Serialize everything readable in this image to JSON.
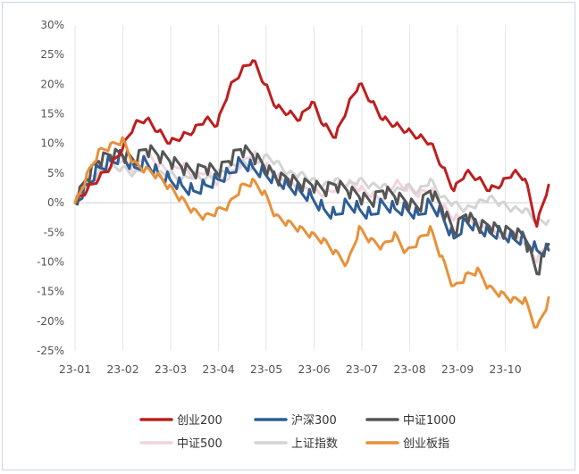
{
  "chart_data": {
    "type": "line",
    "title": "",
    "xlabel": "",
    "ylabel": "",
    "ylim": [
      -25,
      30
    ],
    "y_ticks": [
      30,
      25,
      20,
      15,
      10,
      5,
      0,
      -5,
      -10,
      -15,
      -20,
      -25
    ],
    "y_tick_labels": [
      "30%",
      "25%",
      "20%",
      "15%",
      "10%",
      "5%",
      "0%",
      "-5%",
      "-10%",
      "-15%",
      "-20%",
      "-25%"
    ],
    "x_ticks": [
      "23-01",
      "23-02",
      "23-03",
      "23-04",
      "23-05",
      "23-06",
      "23-07",
      "23-08",
      "23-09",
      "23-10"
    ],
    "x_range": [
      0,
      200
    ],
    "grid": "vertical",
    "legend_position": "bottom",
    "series": [
      {
        "name": "中证500",
        "color": "#f2d4dc",
        "x": [
          0,
          5,
          10,
          15,
          20,
          25,
          30,
          35,
          40,
          45,
          50,
          55,
          60,
          65,
          70,
          75,
          80,
          85,
          90,
          95,
          100,
          105,
          110,
          115,
          120,
          125,
          130,
          135,
          140,
          145,
          150,
          155,
          160,
          165,
          170,
          175,
          180,
          185,
          190,
          195,
          200
        ],
        "values": [
          0,
          3,
          5,
          6,
          7,
          5,
          8,
          6,
          5,
          6,
          4,
          5,
          3,
          4,
          6,
          8,
          6,
          4,
          3,
          2,
          2,
          1,
          2,
          3,
          2,
          1,
          0,
          3,
          2,
          1,
          2,
          -1,
          -3,
          -3,
          -4,
          -5,
          -6,
          -6,
          -7,
          -10,
          -7
        ]
      },
      {
        "name": "上证指数",
        "color": "#d4d4d4",
        "x": [
          0,
          5,
          10,
          15,
          20,
          25,
          30,
          35,
          40,
          45,
          50,
          55,
          60,
          65,
          70,
          75,
          80,
          85,
          90,
          95,
          100,
          105,
          110,
          115,
          120,
          125,
          130,
          135,
          140,
          145,
          150,
          155,
          160,
          165,
          170,
          175,
          180,
          185,
          190,
          195,
          200
        ],
        "values": [
          0,
          3,
          5,
          6,
          6,
          5,
          6,
          5,
          5,
          4,
          5,
          4,
          5,
          6,
          7,
          6,
          8,
          7,
          5,
          5,
          4,
          3,
          4,
          3,
          4,
          3,
          3,
          2,
          3,
          2,
          4,
          1,
          0,
          -1,
          0,
          1,
          0,
          -1,
          -1,
          -3,
          -3
        ]
      },
      {
        "name": "沪深300",
        "color": "#2e5e94",
        "x": [
          0,
          5,
          10,
          15,
          20,
          25,
          30,
          35,
          40,
          45,
          50,
          55,
          60,
          65,
          70,
          75,
          80,
          85,
          90,
          95,
          100,
          105,
          110,
          115,
          120,
          125,
          130,
          135,
          140,
          145,
          150,
          155,
          160,
          165,
          170,
          175,
          180,
          185,
          190,
          195,
          200
        ],
        "values": [
          0,
          3,
          6,
          7,
          8,
          6,
          7,
          5,
          4,
          3,
          2,
          3,
          4,
          5,
          7,
          6,
          5,
          4,
          3,
          2,
          1,
          -1,
          -2,
          0,
          -1,
          -2,
          0,
          -1,
          -1,
          -2,
          0,
          -2,
          -6,
          -3,
          -4,
          -5,
          -5,
          -6,
          -6,
          -8,
          -8
        ]
      },
      {
        "name": "中证1000",
        "color": "#555555",
        "x": [
          0,
          5,
          10,
          15,
          20,
          25,
          30,
          35,
          40,
          45,
          50,
          55,
          60,
          65,
          70,
          75,
          80,
          85,
          90,
          95,
          100,
          105,
          110,
          115,
          120,
          125,
          130,
          135,
          140,
          145,
          150,
          155,
          160,
          165,
          170,
          175,
          180,
          185,
          190,
          195,
          200
        ],
        "values": [
          0,
          4,
          7,
          8,
          8,
          7,
          9,
          8,
          7,
          6,
          5,
          6,
          5,
          7,
          9,
          8,
          6,
          4,
          4,
          3,
          3,
          2,
          3,
          2,
          1,
          0,
          2,
          1,
          0,
          -1,
          2,
          -1,
          -5,
          -2,
          -4,
          -4,
          -5,
          -5,
          -6,
          -12,
          -7
        ]
      },
      {
        "name": "创业200",
        "color": "#bd1f1f",
        "x": [
          0,
          5,
          10,
          15,
          20,
          25,
          30,
          35,
          40,
          45,
          50,
          55,
          60,
          65,
          70,
          75,
          80,
          85,
          90,
          95,
          100,
          105,
          110,
          115,
          120,
          125,
          130,
          135,
          140,
          145,
          150,
          155,
          160,
          165,
          170,
          175,
          180,
          185,
          190,
          195,
          200
        ],
        "values": [
          0,
          2,
          4,
          6,
          9,
          13,
          14,
          12,
          10,
          11,
          12,
          14,
          13,
          19,
          22,
          24,
          20,
          16,
          15,
          14,
          17,
          13,
          11,
          16,
          20,
          17,
          14,
          13,
          12,
          11,
          10,
          6,
          2,
          5,
          4,
          2,
          3,
          5,
          4,
          -4,
          3
        ]
      },
      {
        "name": "创业板指",
        "color": "#e8913a",
        "x": [
          0,
          5,
          10,
          15,
          20,
          25,
          30,
          35,
          40,
          45,
          50,
          55,
          60,
          65,
          70,
          75,
          80,
          85,
          90,
          95,
          100,
          105,
          110,
          115,
          120,
          125,
          130,
          135,
          140,
          145,
          150,
          155,
          160,
          165,
          170,
          175,
          180,
          185,
          190,
          195,
          200
        ],
        "values": [
          0,
          5,
          9,
          10,
          11,
          7,
          6,
          5,
          3,
          1,
          -1,
          -2,
          -1,
          0,
          3,
          4,
          2,
          -2,
          -3,
          -4,
          -5,
          -6,
          -8,
          -10,
          -4,
          -6,
          -7,
          -5,
          -8,
          -6,
          -4,
          -9,
          -14,
          -12,
          -11,
          -14,
          -15,
          -16,
          -16,
          -21,
          -16
        ]
      }
    ],
    "legend": [
      {
        "name": "创业200",
        "color": "#bd1f1f"
      },
      {
        "name": "沪深300",
        "color": "#2e5e94"
      },
      {
        "name": "中证1000",
        "color": "#555555"
      },
      {
        "name": "中证500",
        "color": "#f2d4dc"
      },
      {
        "name": "上证指数",
        "color": "#d4d4d4"
      },
      {
        "name": "创业板指",
        "color": "#e8913a"
      }
    ]
  }
}
